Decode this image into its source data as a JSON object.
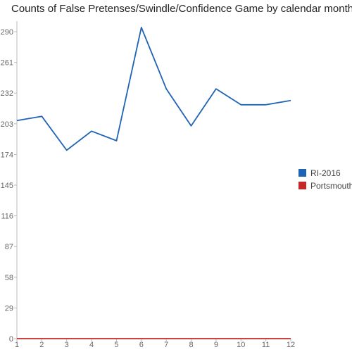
{
  "chart_data": {
    "type": "line",
    "title": "Counts of False Pretenses/Swindle/Confidence Game by calendar month",
    "xlabel": "",
    "ylabel": "",
    "categories": [
      1,
      2,
      3,
      4,
      5,
      6,
      7,
      8,
      9,
      10,
      11,
      12
    ],
    "ylim": [
      0,
      300
    ],
    "yticks": [
      0,
      29,
      58,
      87,
      116,
      145,
      174,
      203,
      232,
      261,
      290
    ],
    "grid": false,
    "legend_position": "right",
    "series": [
      {
        "name": "RI-2016",
        "color": "#1f63b5",
        "values": [
          206,
          210,
          178,
          196,
          187,
          294,
          236,
          201,
          236,
          221,
          221,
          225
        ]
      },
      {
        "name": "Portsmouth",
        "color": "#c62828",
        "values": [
          0,
          0,
          0,
          0,
          0,
          0,
          0,
          0,
          0,
          0,
          0,
          0
        ]
      }
    ]
  }
}
